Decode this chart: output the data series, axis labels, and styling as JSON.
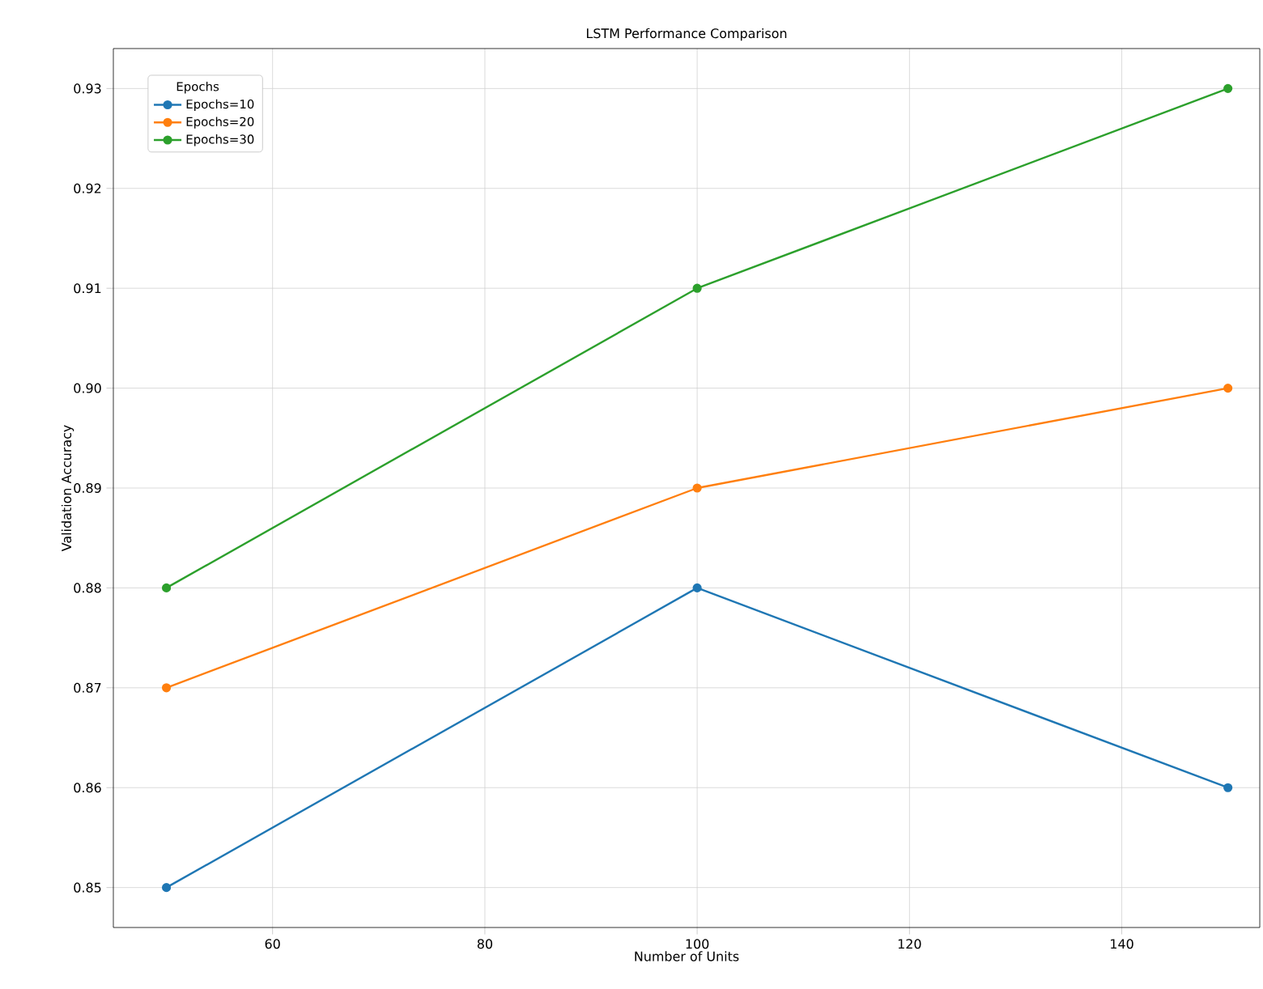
{
  "chart_data": {
    "type": "line",
    "title": "LSTM Performance Comparison",
    "xlabel": "Number of Units",
    "ylabel": "Validation Accuracy",
    "legend_title": "Epochs",
    "x": [
      50,
      100,
      150
    ],
    "series": [
      {
        "name": "Epochs=10",
        "color": "#1f77b4",
        "values": [
          0.85,
          0.88,
          0.86
        ]
      },
      {
        "name": "Epochs=20",
        "color": "#ff7f0e",
        "values": [
          0.87,
          0.89,
          0.9
        ]
      },
      {
        "name": "Epochs=30",
        "color": "#2ca02c",
        "values": [
          0.88,
          0.91,
          0.93
        ]
      }
    ],
    "xlim": [
      45,
      153
    ],
    "ylim": [
      0.846,
      0.934
    ],
    "xticks": [
      60,
      80,
      100,
      120,
      140
    ],
    "yticks": [
      0.85,
      0.86,
      0.87,
      0.88,
      0.89,
      {
        "value": 0.9,
        "label": "0.90"
      },
      0.91,
      0.92,
      0.93
    ],
    "grid": true,
    "legend": "top left",
    "marker": "circle",
    "line_style": "solid"
  }
}
